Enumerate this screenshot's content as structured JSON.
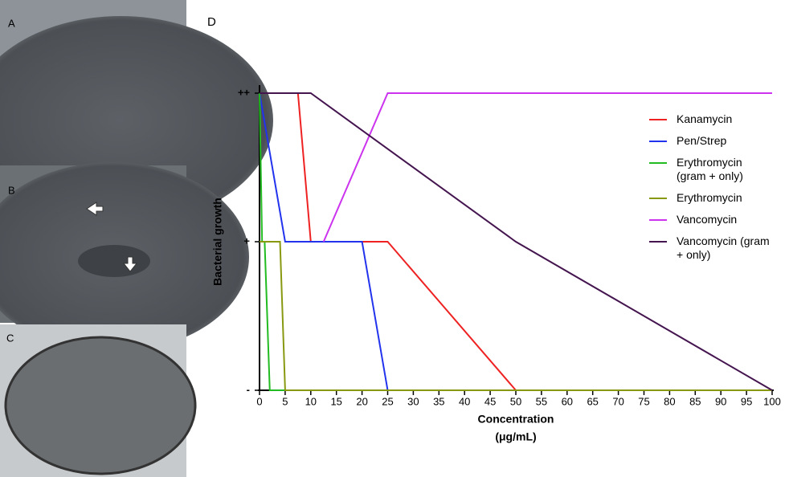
{
  "panels": {
    "a": "A",
    "b": "B",
    "c": "C"
  },
  "chart_data": {
    "type": "line",
    "panel": "D",
    "xlabel": [
      "Concentration",
      "(μg/mL)"
    ],
    "ylabel": "Bacterial growth",
    "xlim": [
      0,
      100
    ],
    "ylim": [
      0,
      2
    ],
    "xticks": [
      0,
      5,
      10,
      15,
      20,
      25,
      30,
      35,
      40,
      45,
      50,
      55,
      60,
      65,
      70,
      75,
      80,
      85,
      90,
      95,
      100
    ],
    "yticks": [
      {
        "value": 0,
        "label": "-"
      },
      {
        "value": 1,
        "label": "+"
      },
      {
        "value": 2,
        "label": "++"
      }
    ],
    "series": [
      {
        "name": "Kanamycin",
        "color": "#ee2222",
        "x": [
          0,
          7.5,
          10,
          25,
          50,
          100
        ],
        "values": [
          2,
          2,
          1,
          1,
          0,
          0
        ]
      },
      {
        "name": "Pen/Strep",
        "color": "#2233ee",
        "x": [
          0,
          5,
          20,
          25,
          100
        ],
        "values": [
          2,
          1,
          1,
          0,
          0
        ]
      },
      {
        "name": "Erythromycin (gram + only)",
        "color": "#22bb22",
        "x": [
          0,
          0.5,
          1,
          2,
          100
        ],
        "values": [
          2,
          1,
          1,
          0,
          0
        ]
      },
      {
        "name": "Erythromycin",
        "color": "#889911",
        "x": [
          0,
          4,
          5,
          100
        ],
        "values": [
          1,
          1,
          0,
          0
        ]
      },
      {
        "name": "Vancomycin",
        "color": "#cc33ee",
        "x": [
          12.5,
          25,
          100
        ],
        "values": [
          1,
          2,
          2
        ]
      },
      {
        "name": "Vancomycin (gram + only)",
        "color": "#44154f",
        "x": [
          0,
          10,
          50,
          100
        ],
        "values": [
          2,
          2,
          1,
          0
        ]
      }
    ]
  }
}
